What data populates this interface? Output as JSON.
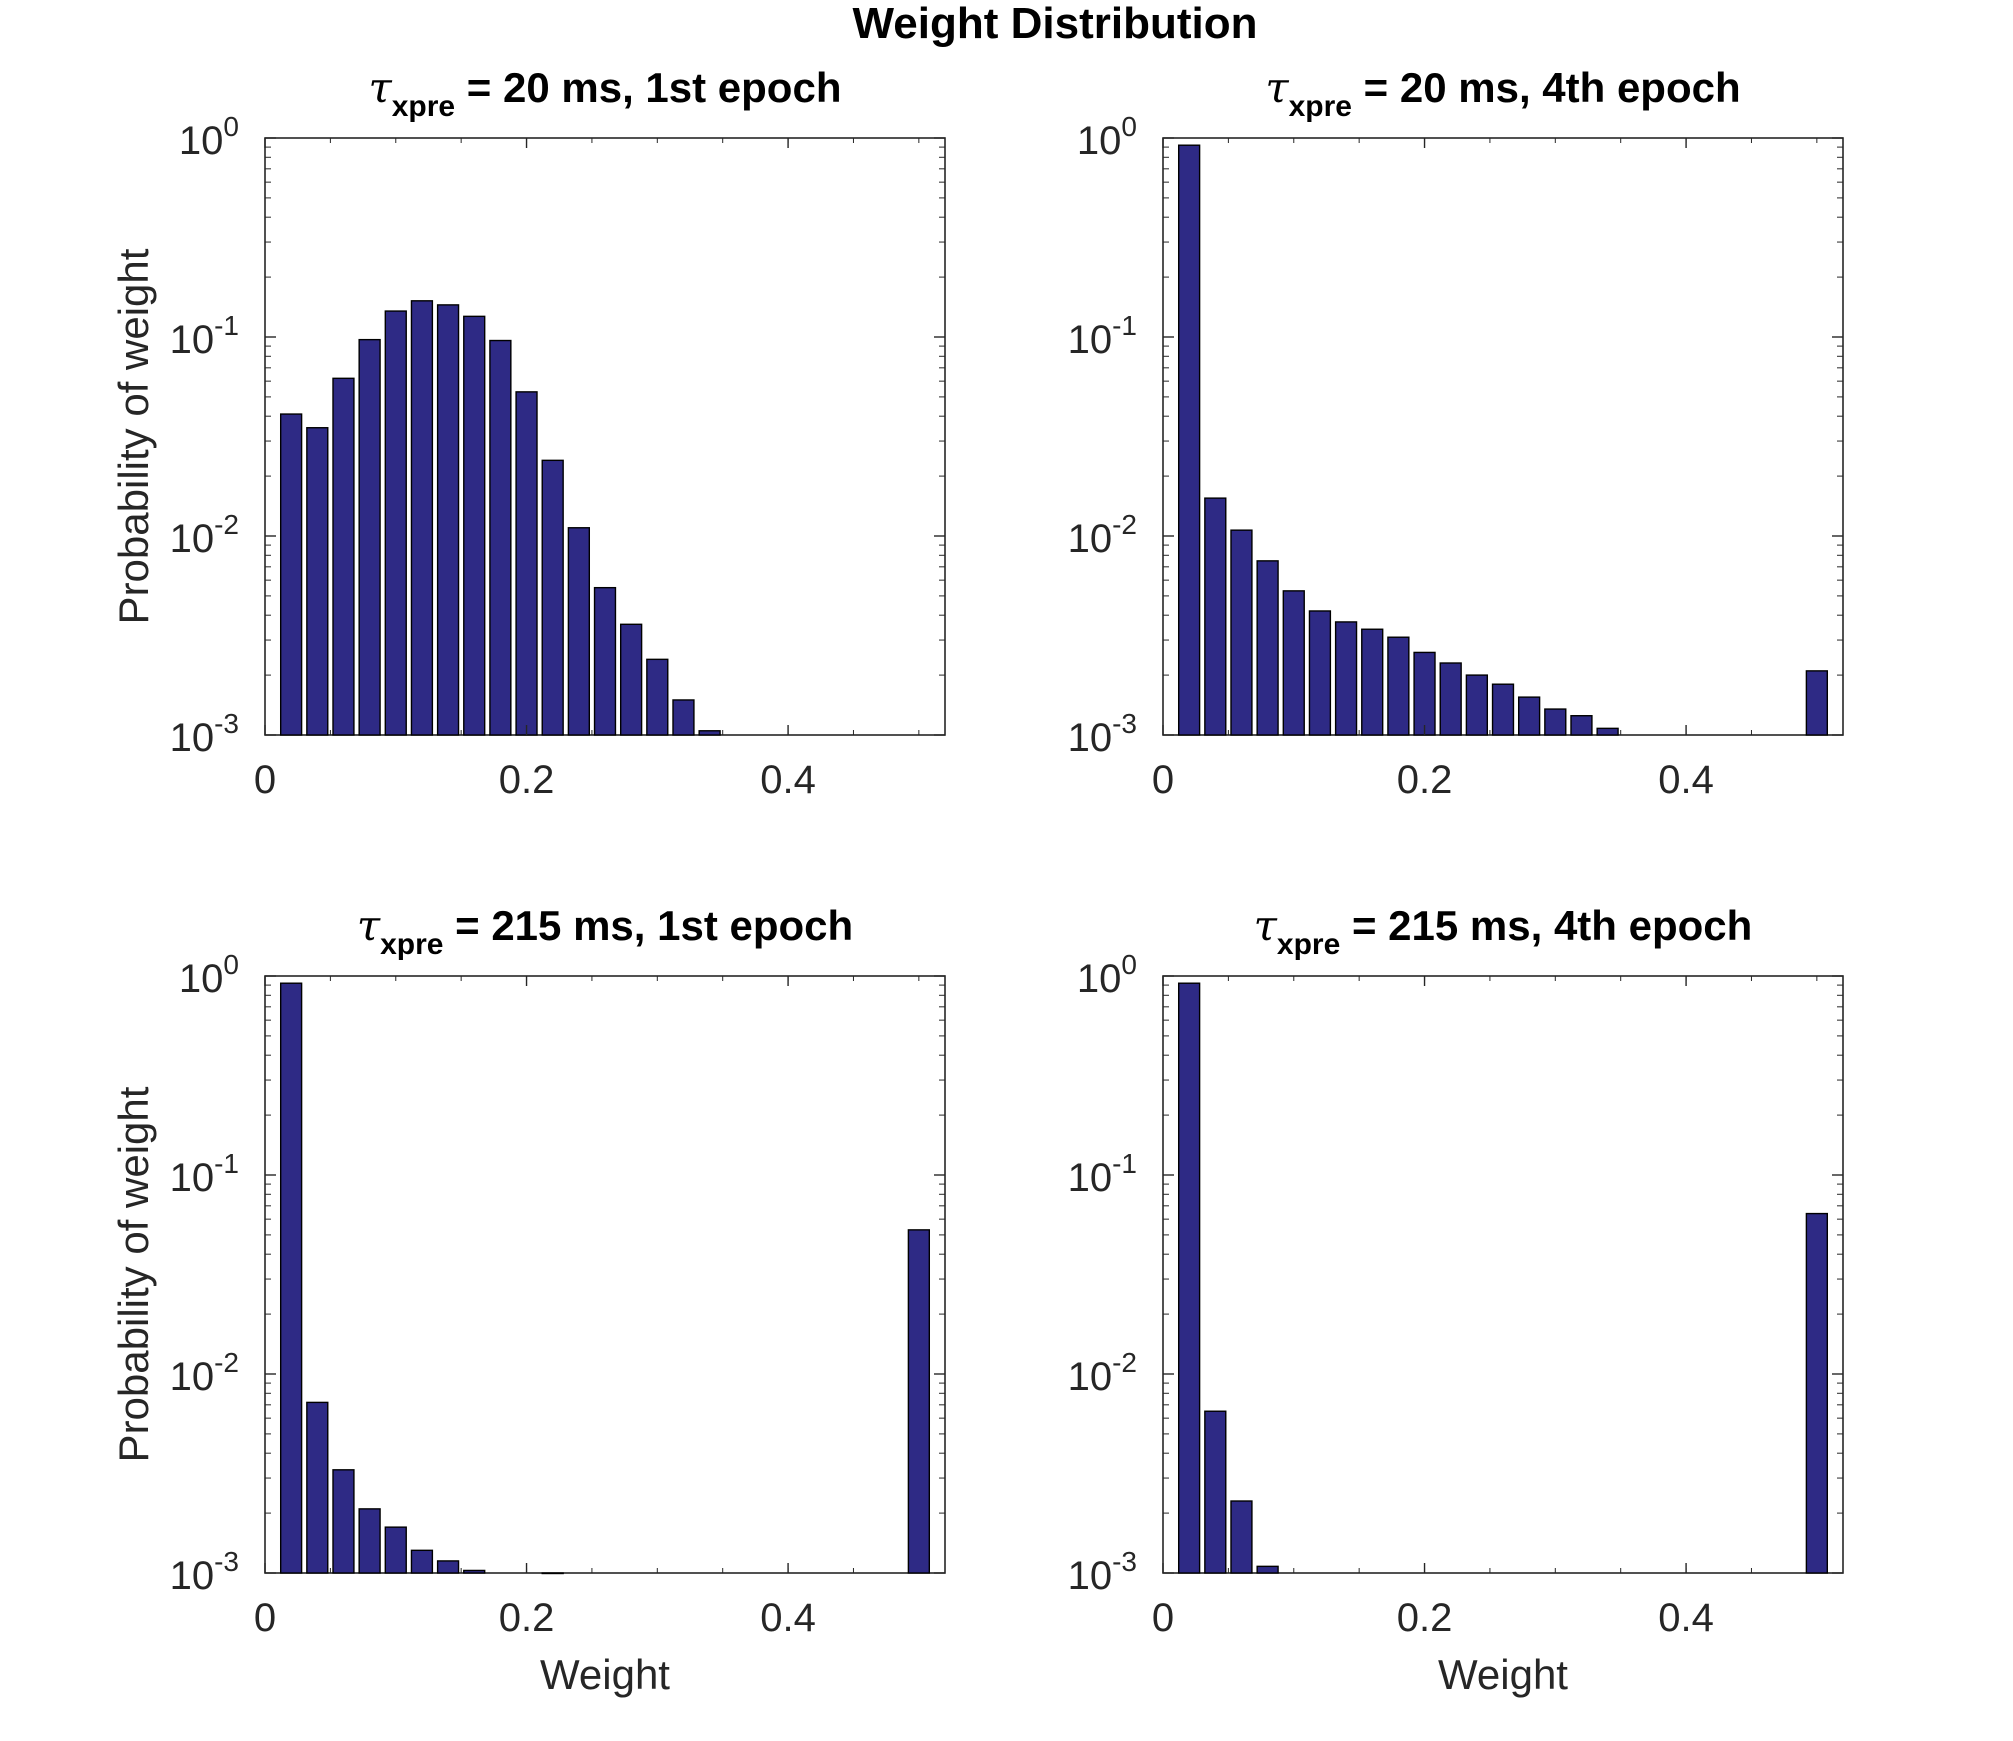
{
  "figure_title": "Weight Distribution",
  "colors": {
    "bar_fill": "#2e2a85",
    "bar_edge": "#000000",
    "axis": "#262626",
    "text": "#000000"
  },
  "chart_data": [
    {
      "type": "bar",
      "title": {
        "tau": "τ",
        "sub": "xpre",
        "rest": " = 20 ms, 1st epoch"
      },
      "xlabel": "",
      "ylabel": "Probability of weight",
      "xlim": [
        0,
        0.52
      ],
      "ylim": [
        0.001,
        1
      ],
      "yscale": "log",
      "xticks": [
        "0",
        "0.2",
        "0.4"
      ],
      "yticks": [
        {
          "base": "10",
          "exp": "0"
        },
        {
          "base": "10",
          "exp": "-1"
        },
        {
          "base": "10",
          "exp": "-2"
        },
        {
          "base": "10",
          "exp": "-3"
        }
      ],
      "bar_width": 0.016,
      "x": [
        0.02,
        0.04,
        0.06,
        0.08,
        0.1,
        0.12,
        0.14,
        0.16,
        0.18,
        0.2,
        0.22,
        0.24,
        0.26,
        0.28,
        0.3,
        0.32,
        0.34
      ],
      "values": [
        0.041,
        0.035,
        0.062,
        0.097,
        0.135,
        0.152,
        0.145,
        0.127,
        0.096,
        0.053,
        0.024,
        0.011,
        0.0055,
        0.0036,
        0.0024,
        0.0015,
        0.00105
      ]
    },
    {
      "type": "bar",
      "title": {
        "tau": "τ",
        "sub": "xpre",
        "rest": " = 20 ms, 4th epoch"
      },
      "xlabel": "",
      "ylabel": "",
      "xlim": [
        0,
        0.52
      ],
      "ylim": [
        0.001,
        1
      ],
      "yscale": "log",
      "xticks": [
        "0",
        "0.2",
        "0.4"
      ],
      "yticks": [
        {
          "base": "10",
          "exp": "0"
        },
        {
          "base": "10",
          "exp": "-1"
        },
        {
          "base": "10",
          "exp": "-2"
        },
        {
          "base": "10",
          "exp": "-3"
        }
      ],
      "bar_width": 0.016,
      "x": [
        0.02,
        0.04,
        0.06,
        0.08,
        0.1,
        0.12,
        0.14,
        0.16,
        0.18,
        0.2,
        0.22,
        0.24,
        0.26,
        0.28,
        0.3,
        0.32,
        0.34,
        0.5
      ],
      "values": [
        0.92,
        0.0155,
        0.0107,
        0.0075,
        0.0053,
        0.0042,
        0.0037,
        0.0034,
        0.0031,
        0.0026,
        0.0023,
        0.002,
        0.0018,
        0.00155,
        0.00135,
        0.00125,
        0.00108,
        0.0021
      ]
    },
    {
      "type": "bar",
      "title": {
        "tau": "τ",
        "sub": "xpre",
        "rest": " = 215 ms, 1st epoch"
      },
      "xlabel": "Weight",
      "ylabel": "Probability of weight",
      "xlim": [
        0,
        0.52
      ],
      "ylim": [
        0.001,
        1
      ],
      "yscale": "log",
      "xticks": [
        "0",
        "0.2",
        "0.4"
      ],
      "yticks": [
        {
          "base": "10",
          "exp": "0"
        },
        {
          "base": "10",
          "exp": "-1"
        },
        {
          "base": "10",
          "exp": "-2"
        },
        {
          "base": "10",
          "exp": "-3"
        }
      ],
      "bar_width": 0.016,
      "x": [
        0.02,
        0.04,
        0.06,
        0.08,
        0.1,
        0.12,
        0.14,
        0.16,
        0.22,
        0.5
      ],
      "values": [
        0.92,
        0.0072,
        0.0033,
        0.0021,
        0.0017,
        0.0013,
        0.00115,
        0.00103,
        0.001,
        0.053
      ]
    },
    {
      "type": "bar",
      "title": {
        "tau": "τ",
        "sub": "xpre",
        "rest": " = 215 ms, 4th epoch"
      },
      "xlabel": "Weight",
      "ylabel": "",
      "xlim": [
        0,
        0.52
      ],
      "ylim": [
        0.001,
        1
      ],
      "yscale": "log",
      "xticks": [
        "0",
        "0.2",
        "0.4"
      ],
      "yticks": [
        {
          "base": "10",
          "exp": "0"
        },
        {
          "base": "10",
          "exp": "-1"
        },
        {
          "base": "10",
          "exp": "-2"
        },
        {
          "base": "10",
          "exp": "-3"
        }
      ],
      "bar_width": 0.016,
      "x": [
        0.02,
        0.04,
        0.06,
        0.08,
        0.5
      ],
      "values": [
        0.92,
        0.0065,
        0.0023,
        0.00108,
        0.064
      ]
    }
  ]
}
